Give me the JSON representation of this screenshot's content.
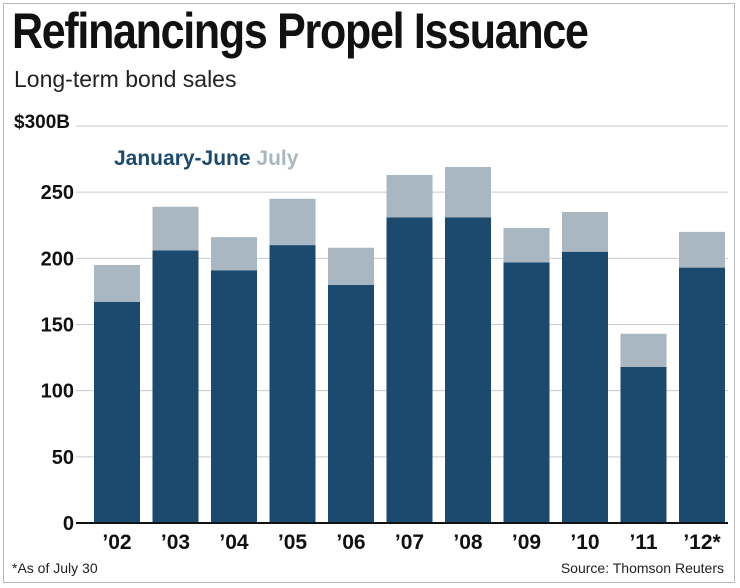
{
  "header": {
    "title": "Refinancings Propel Issuance",
    "subtitle": "Long-term bond sales"
  },
  "footer": {
    "footnote": "*As of July 30",
    "source": "Source: Thomson Reuters"
  },
  "colors": {
    "jan_june": "#1c4a6e",
    "july": "#a9b7c2",
    "grid": "#c9c9c9",
    "axis": "#111111"
  },
  "chart_data": {
    "type": "bar",
    "stacked": true,
    "title": "Refinancings Propel Issuance",
    "subtitle": "Long-term bond sales",
    "xlabel": "",
    "ylabel": "",
    "ylim": [
      0,
      300
    ],
    "yticks": [
      0,
      50,
      100,
      150,
      200,
      250,
      300
    ],
    "ytick_labels": [
      "0",
      "50",
      "100",
      "150",
      "200",
      "250",
      "$300B"
    ],
    "categories": [
      "’02",
      "’03",
      "’04",
      "’05",
      "’06",
      "’07",
      "’08",
      "’09",
      "’10",
      "’11",
      "’12*"
    ],
    "series": [
      {
        "name": "January-June",
        "values": [
          167,
          206,
          191,
          210,
          180,
          231,
          231,
          197,
          205,
          118,
          193
        ]
      },
      {
        "name": "July",
        "values": [
          28,
          33,
          25,
          35,
          28,
          32,
          38,
          26,
          30,
          25,
          27
        ]
      }
    ],
    "grid": true,
    "legend": "top-left"
  }
}
